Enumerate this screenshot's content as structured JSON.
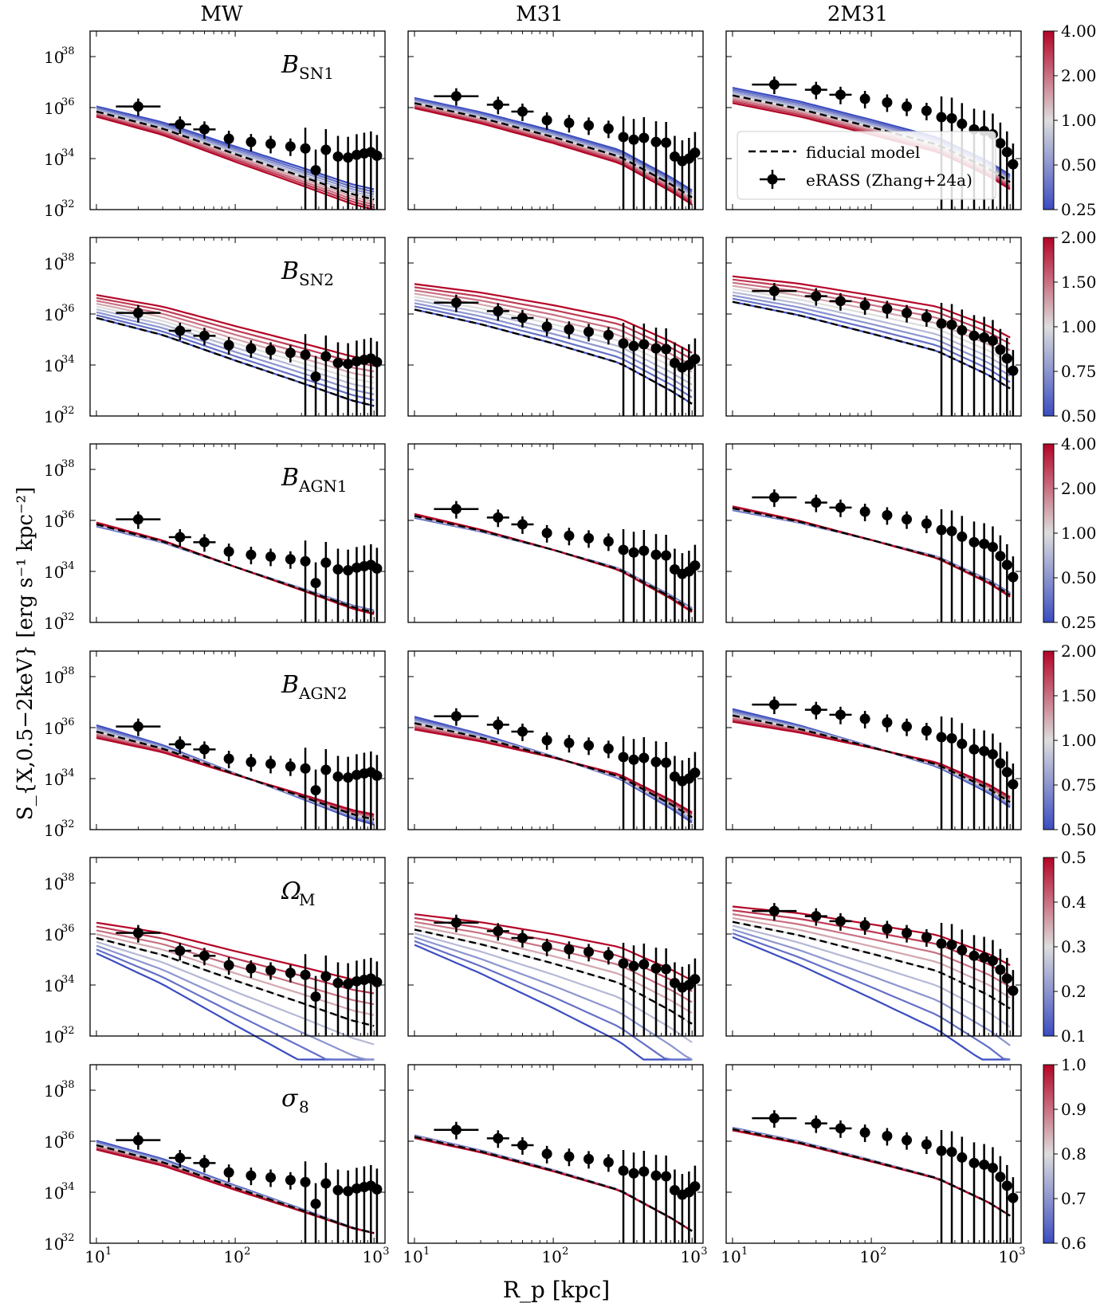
{
  "figure": {
    "column_titles": [
      "MW",
      "M31",
      "2M31"
    ],
    "ylabel": "S_{X,0.5−2keV} [erg s⁻¹ kpc⁻²]",
    "xlabel": "R_p [kpc]",
    "xticks": [
      {
        "main": "10",
        "exp": "1"
      },
      {
        "main": "10",
        "exp": "2"
      },
      {
        "main": "10",
        "exp": "3"
      }
    ],
    "yticks": [
      {
        "main": "10",
        "exp": "32"
      },
      {
        "main": "10",
        "exp": "34"
      },
      {
        "main": "10",
        "exp": "36"
      },
      {
        "main": "10",
        "exp": "38"
      }
    ],
    "legend": {
      "fiducial": "fiducial model",
      "data": "eRASS (Zhang+24a)"
    },
    "colormap": {
      "low": "#3b4cc0",
      "mid": "#dddddd",
      "high": "#b40426"
    }
  },
  "chart_data": {
    "type": "line",
    "xscale": "log",
    "yscale": "log",
    "xlim": [
      9,
      1200
    ],
    "ylim": [
      1e+32,
      1e+39
    ],
    "rows": [
      {
        "param": "B",
        "param_sub": "SN1",
        "cbar_ticks": [
          "4.00",
          "2.00",
          "1.00",
          "0.50",
          "0.25"
        ]
      },
      {
        "param": "B",
        "param_sub": "SN2",
        "cbar_ticks": [
          "2.00",
          "1.50",
          "1.00",
          "0.75",
          "0.50"
        ]
      },
      {
        "param": "B",
        "param_sub": "AGN1",
        "cbar_ticks": [
          "4.00",
          "2.00",
          "1.00",
          "0.50",
          "0.25"
        ]
      },
      {
        "param": "B",
        "param_sub": "AGN2",
        "cbar_ticks": [
          "2.00",
          "1.50",
          "1.00",
          "0.75",
          "0.50"
        ]
      },
      {
        "param": "Ω",
        "param_sub": "M",
        "cbar_ticks": [
          "0.5",
          "0.4",
          "0.3",
          "0.2",
          "0.1"
        ]
      },
      {
        "param": "σ",
        "param_sub": "8",
        "cbar_ticks": [
          "1.0",
          "0.9",
          "0.8",
          "0.7",
          "0.6"
        ]
      }
    ],
    "data_points": {
      "x": [
        20,
        40,
        60,
        90,
        130,
        180,
        250,
        320,
        380,
        450,
        550,
        650,
        750,
        850,
        950,
        1050
      ],
      "MW": [
        1.1e+36,
        2.2e+35,
        1.4e+35,
        6e+34,
        4.5e+34,
        3.8e+34,
        3e+34,
        2.5e+34,
        3.5e+33,
        2.2e+34,
        1.2e+34,
        1.1e+34,
        1.4e+34,
        1.6e+34,
        1.8e+34,
        1.3e+34
      ],
      "M31": [
        2.8e+36,
        1.3e+36,
        7e+35,
        3.2e+35,
        2.5e+35,
        2e+35,
        1.5e+35,
        7e+34,
        5.5e+34,
        6.5e+34,
        4.5e+34,
        4.2e+34,
        1.2e+34,
        8e+33,
        1e+34,
        1.7e+34
      ],
      "2M31": [
        8e+36,
        5e+36,
        3.2e+36,
        2.2e+36,
        1.6e+36,
        1.1e+36,
        7.5e+35,
        4.2e+35,
        3.8e+35,
        2.3e+35,
        1.4e+35,
        1.2e+35,
        9e+34,
        4e+34,
        1.8e+34,
        6e+33
      ]
    },
    "fiducial": {
      "x": [
        10,
        30,
        100,
        300,
        700,
        1000
      ],
      "MW": [
        7e+35,
        1.5e+35,
        1.5e+34,
        2e+33,
        4e+32,
        2.5e+32
      ],
      "M31": [
        1.5e+36,
        4e+35,
        7e+34,
        1.2e+34,
        1e+33,
        3e+32
      ],
      "2M31": [
        3e+36,
        9e+35,
        1.7e+35,
        3.5e+34,
        4e+33,
        1.2e+33
      ]
    }
  }
}
